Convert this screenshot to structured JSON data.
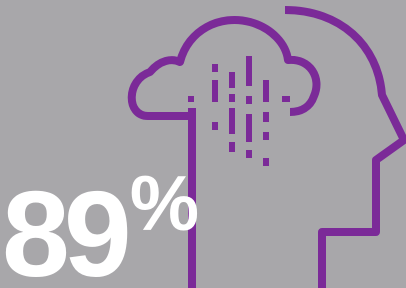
{
  "stat": "89%"
}
